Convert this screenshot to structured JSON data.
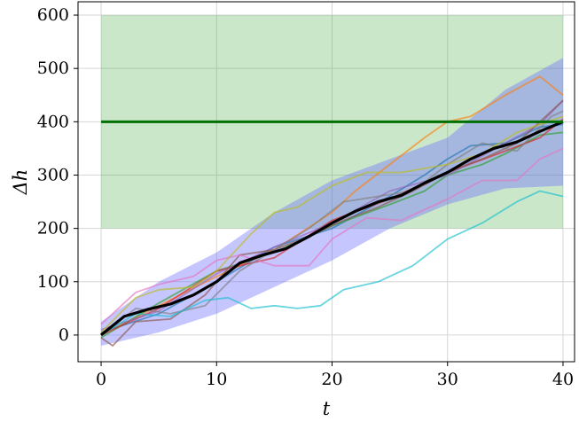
{
  "chart_data": {
    "type": "line",
    "xlabel": "t",
    "ylabel": "Δh",
    "xlim": [
      -2,
      41
    ],
    "ylim": [
      -50,
      625
    ],
    "xticks": [
      0,
      10,
      20,
      30,
      40
    ],
    "yticks": [
      0,
      100,
      200,
      300,
      400,
      500,
      600
    ],
    "xtick_labels": [
      "0",
      "10",
      "20",
      "30",
      "40"
    ],
    "ytick_labels": [
      "0",
      "100",
      "200",
      "300",
      "400",
      "500",
      "600"
    ],
    "grid": true,
    "target_region": {
      "x": [
        0,
        40
      ],
      "y": [
        200,
        600
      ],
      "color": "#2ca02c"
    },
    "target_line": {
      "y": 400,
      "x": [
        0,
        40
      ],
      "color": "#007000"
    },
    "band": {
      "color": "#6a6aff",
      "x": [
        0,
        5,
        10,
        15,
        20,
        25,
        30,
        35,
        40
      ],
      "lower": [
        -20,
        5,
        40,
        90,
        140,
        200,
        245,
        275,
        280
      ],
      "upper": [
        25,
        100,
        155,
        230,
        290,
        330,
        370,
        460,
        520
      ]
    },
    "mean": {
      "color": "#000000",
      "x": [
        0,
        2,
        4,
        6,
        8,
        10,
        12,
        14,
        16,
        18,
        20,
        22,
        24,
        26,
        28,
        30,
        32,
        34,
        36,
        38,
        40
      ],
      "y": [
        0,
        35,
        48,
        58,
        75,
        100,
        135,
        150,
        162,
        185,
        210,
        232,
        250,
        262,
        285,
        305,
        330,
        350,
        362,
        382,
        400
      ]
    },
    "series": [
      {
        "color": "#ff7f0e",
        "x": [
          0,
          5,
          10,
          15,
          20,
          22,
          25,
          28,
          30,
          32,
          35,
          38,
          40
        ],
        "y": [
          0,
          55,
          110,
          160,
          230,
          270,
          320,
          370,
          400,
          410,
          450,
          485,
          450
        ]
      },
      {
        "color": "#1f77b4",
        "x": [
          0,
          5,
          10,
          15,
          20,
          25,
          28,
          30,
          32,
          35,
          38,
          40
        ],
        "y": [
          5,
          40,
          100,
          165,
          200,
          260,
          300,
          330,
          355,
          360,
          390,
          395
        ]
      },
      {
        "color": "#2ca02c",
        "x": [
          0,
          5,
          10,
          15,
          20,
          25,
          28,
          30,
          33,
          35,
          38,
          40
        ],
        "y": [
          -5,
          60,
          120,
          155,
          205,
          245,
          270,
          300,
          320,
          340,
          375,
          380
        ]
      },
      {
        "color": "#d62728",
        "x": [
          0,
          5,
          10,
          15,
          20,
          25,
          30,
          35,
          38,
          40
        ],
        "y": [
          0,
          50,
          120,
          145,
          215,
          255,
          305,
          345,
          370,
          405
        ]
      },
      {
        "color": "#9467bd",
        "x": [
          0,
          5,
          10,
          15,
          20,
          25,
          30,
          35,
          38,
          40
        ],
        "y": [
          10,
          45,
          115,
          165,
          210,
          270,
          300,
          360,
          395,
          440
        ]
      },
      {
        "color": "#8c564b",
        "x": [
          0,
          1,
          3,
          6,
          9,
          12,
          15,
          18,
          21,
          24,
          27,
          30,
          33,
          36,
          40
        ],
        "y": [
          -5,
          -20,
          25,
          30,
          75,
          150,
          160,
          185,
          215,
          240,
          270,
          305,
          330,
          360,
          440
        ]
      },
      {
        "color": "#e377c2",
        "x": [
          0,
          3,
          5,
          8,
          10,
          12,
          15,
          18,
          20,
          23,
          26,
          30,
          33,
          36,
          38,
          40
        ],
        "y": [
          20,
          80,
          95,
          110,
          140,
          150,
          130,
          130,
          180,
          220,
          215,
          255,
          290,
          290,
          330,
          350
        ]
      },
      {
        "color": "#7f7f7f",
        "x": [
          0,
          3,
          6,
          9,
          12,
          15,
          18,
          21,
          24,
          27,
          30,
          33,
          36,
          39,
          40
        ],
        "y": [
          0,
          50,
          40,
          55,
          120,
          160,
          200,
          250,
          260,
          270,
          320,
          360,
          345,
          410,
          420
        ]
      },
      {
        "color": "#bcbd22",
        "x": [
          0,
          3,
          5,
          8,
          10,
          13,
          15,
          17,
          20,
          23,
          26,
          30,
          33,
          36,
          40
        ],
        "y": [
          5,
          70,
          85,
          90,
          120,
          190,
          230,
          240,
          280,
          305,
          305,
          320,
          340,
          380,
          410
        ]
      },
      {
        "color": "#17becf",
        "x": [
          0,
          3,
          6,
          9,
          11,
          13,
          15,
          17,
          19,
          21,
          24,
          27,
          30,
          33,
          36,
          38,
          40
        ],
        "y": [
          0,
          40,
          35,
          65,
          70,
          50,
          55,
          50,
          55,
          85,
          100,
          130,
          180,
          210,
          250,
          270,
          260
        ]
      }
    ]
  }
}
